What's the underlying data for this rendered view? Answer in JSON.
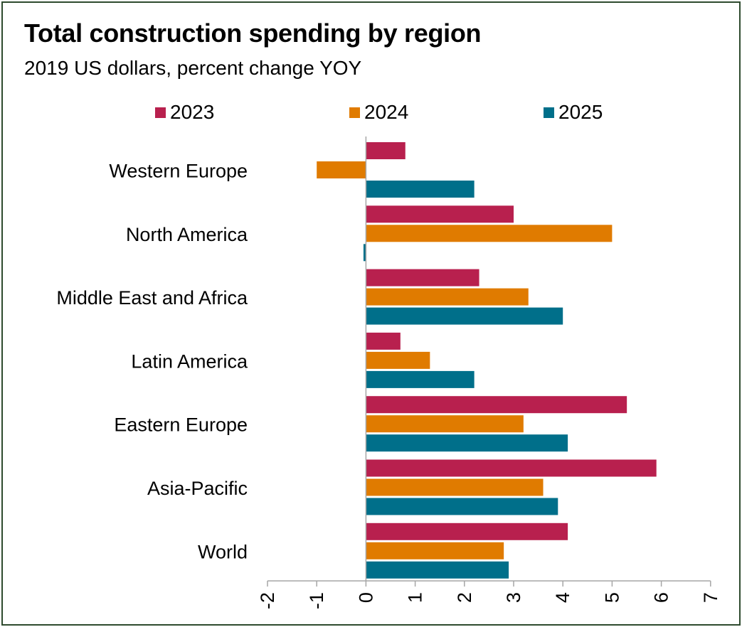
{
  "chart_data": {
    "type": "bar",
    "orientation": "horizontal",
    "title": "Total construction spending by region",
    "subtitle": "2019 US dollars, percent change YOY",
    "categories": [
      "Western Europe",
      "North America",
      "Middle East and Africa",
      "Latin America",
      "Eastern Europe",
      "Asia-Pacific",
      "World"
    ],
    "series": [
      {
        "name": "2023",
        "color": "#b8204e",
        "values": [
          0.8,
          3.0,
          2.3,
          0.7,
          5.3,
          5.9,
          4.1
        ]
      },
      {
        "name": "2024",
        "color": "#e07b00",
        "values": [
          -1.0,
          5.0,
          3.3,
          1.3,
          3.2,
          3.6,
          2.8
        ]
      },
      {
        "name": "2025",
        "color": "#006f8a",
        "values": [
          2.2,
          -0.05,
          4.0,
          2.2,
          4.1,
          3.9,
          2.9
        ]
      }
    ],
    "xlim": [
      -2,
      7
    ],
    "xticks": [
      "-2",
      "-1",
      "0",
      "1",
      "2",
      "3",
      "4",
      "5",
      "6",
      "7"
    ],
    "legend_position": "top",
    "grid": false
  }
}
